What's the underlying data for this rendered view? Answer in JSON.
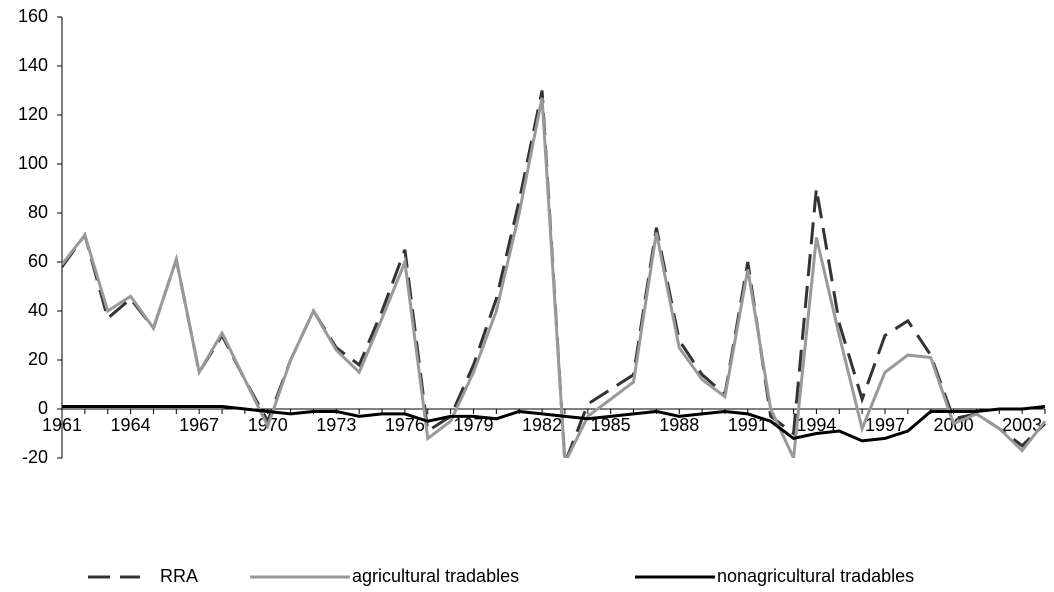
{
  "chart_data": {
    "type": "line",
    "categories": [
      "1961",
      null,
      null,
      "1964",
      null,
      null,
      "1967",
      null,
      null,
      "1970",
      null,
      null,
      "1973",
      null,
      null,
      "1976",
      null,
      null,
      "1979",
      null,
      null,
      "1982",
      null,
      null,
      "1985",
      null,
      null,
      "1988",
      null,
      null,
      "1991",
      null,
      null,
      "1994",
      null,
      null,
      "1997",
      null,
      null,
      "2000",
      null,
      null,
      "2003",
      null
    ],
    "series": [
      {
        "name": "RRA",
        "color": "#333333",
        "dashed": true,
        "values": [
          58,
          71,
          37,
          45,
          33,
          61,
          15,
          30,
          12,
          -5,
          20,
          40,
          25,
          18,
          40,
          65,
          -9,
          -3,
          18,
          45,
          85,
          130,
          -22,
          2,
          8,
          14,
          74,
          28,
          14,
          6,
          60,
          -3,
          -10,
          90,
          35,
          4,
          30,
          36,
          22,
          -4,
          -2,
          -8,
          -15,
          -6
        ]
      },
      {
        "name": "agricultural tradables",
        "color": "#999999",
        "dashed": false,
        "values": [
          59,
          71,
          40,
          46,
          33,
          61,
          15,
          31,
          12,
          -7,
          20,
          40,
          24,
          15,
          37,
          60,
          -12,
          -5,
          15,
          40,
          80,
          127,
          -22,
          -3,
          4,
          11,
          72,
          25,
          12,
          5,
          57,
          0,
          -20,
          70,
          30,
          -8,
          15,
          22,
          21,
          -6,
          -2,
          -8,
          -17,
          -5
        ]
      },
      {
        "name": "nonagricultural tradables",
        "color": "#000000",
        "dashed": false,
        "values": [
          1,
          1,
          1,
          1,
          1,
          1,
          1,
          1,
          0,
          -1,
          -2,
          -1,
          -1,
          -3,
          -2,
          -2,
          -5,
          -3,
          -3,
          -4,
          -1,
          -2,
          -3,
          -4,
          -3,
          -2,
          -1,
          -3,
          -2,
          -1,
          -2,
          -5,
          -12,
          -10,
          -9,
          -13,
          -12,
          -9,
          -1,
          -1,
          -1,
          0,
          0,
          1
        ]
      }
    ],
    "ylim": [
      -20,
      160
    ],
    "yticks": [
      -20,
      0,
      20,
      40,
      60,
      80,
      100,
      120,
      140,
      160
    ],
    "grid": false,
    "legend": "bottom"
  }
}
